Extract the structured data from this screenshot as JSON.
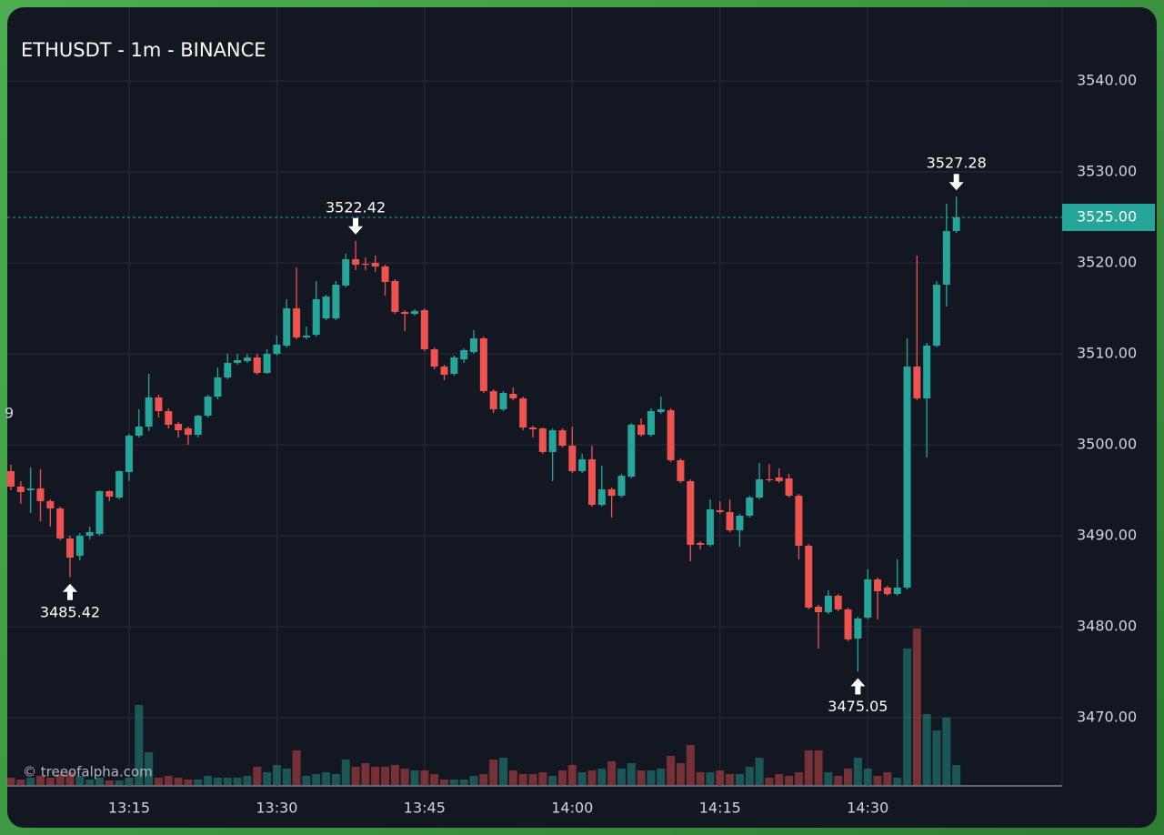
{
  "chart_data": {
    "type": "candlestick",
    "title": "ETHUSDT - 1m - BINANCE",
    "watermark": "© treeofalpha.com",
    "edge_label": "9",
    "up_color": "#26a69a",
    "down_color": "#ef5350",
    "grid": true,
    "categories": [
      null,
      null,
      null,
      null,
      null,
      null,
      null,
      null,
      null,
      null,
      null,
      null,
      "13:15",
      null,
      null,
      null,
      null,
      null,
      null,
      null,
      null,
      null,
      null,
      null,
      null,
      null,
      null,
      "13:30",
      null,
      null,
      null,
      null,
      null,
      null,
      null,
      null,
      null,
      null,
      null,
      null,
      null,
      null,
      "13:45",
      null,
      null,
      null,
      null,
      null,
      null,
      null,
      null,
      null,
      null,
      null,
      null,
      null,
      null,
      "14:00",
      null,
      null,
      null,
      null,
      null,
      null,
      null,
      null,
      null,
      null,
      null,
      null,
      null,
      null,
      "14:15",
      null,
      null,
      null,
      null,
      null,
      null,
      null,
      null,
      null,
      null,
      null,
      null,
      null,
      null,
      "14:30",
      null,
      null,
      null,
      null,
      null,
      null,
      null,
      null,
      null
    ],
    "open": [
      3497.1,
      3495.4,
      3495,
      3495.2,
      3493.8,
      3493,
      3489.7,
      3487.8,
      3490,
      3490.2,
      3494.9,
      3494.2,
      3497,
      3501,
      3502,
      3505.2,
      3503.7,
      3502.3,
      3501.8,
      3501.1,
      3503.2,
      3505.3,
      3507.4,
      3509,
      3509.2,
      3509.6,
      3507.9,
      3510,
      3510.9,
      3515,
      3511.8,
      3512.1,
      3513.9,
      3513.9,
      3517.5,
      3520.4,
      3519.9,
      3520,
      3519.6,
      3518,
      3514.6,
      3514.4,
      3514.8,
      3510.5,
      3508.6,
      3507.8,
      3509.4,
      3510.2,
      3511.7,
      3505.9,
      3503.9,
      3505.6,
      3505.1,
      3501.9,
      3501.8,
      3499.2,
      3501.6,
      3499.9,
      3497.1,
      3498.4,
      3493.4,
      3495.1,
      3494.4,
      3496.5,
      3502.2,
      3501.1,
      3503.6,
      3503.8,
      3498.3,
      3496,
      3489.2,
      3489,
      3492.8,
      3492.6,
      3490.6,
      3492.2,
      3494.2,
      3496.2,
      3496.4,
      3496.3,
      3494.4,
      3488.9,
      3482.2,
      3481.6,
      3483.4,
      3481.9,
      3478.7,
      3481,
      3485.2,
      3484.3,
      3483.6,
      3484.3,
      3508.6,
      3505.1,
      3510.9,
      3517.6,
      3523.5
    ],
    "high": [
      3497.8,
      3496,
      3497.5,
      3497.3,
      3494,
      3493.2,
      3490,
      3490.3,
      3491,
      3495,
      3495,
      3497.2,
      3501.2,
      3503.9,
      3507.8,
      3505.5,
      3504,
      3502.5,
      3502,
      3503.3,
      3505.5,
      3508.5,
      3510,
      3510,
      3510,
      3510,
      3510.5,
      3512,
      3516,
      3519.5,
      3513,
      3518,
      3516.5,
      3518,
      3521,
      3522.42,
      3520.6,
      3520.8,
      3519.8,
      3518.2,
      3514.8,
      3514.9,
      3515,
      3510.7,
      3508.8,
      3509.8,
      3510.6,
      3512.6,
      3511.9,
      3506.1,
      3505.9,
      3506.3,
      3505.3,
      3502.1,
      3501.9,
      3501.8,
      3501.8,
      3502,
      3499,
      3499.9,
      3497.7,
      3495.3,
      3496.8,
      3502.4,
      3502.9,
      3504,
      3505.3,
      3504,
      3498.5,
      3496.2,
      3489.4,
      3494,
      3493.8,
      3494,
      3492.4,
      3494.4,
      3498,
      3497.9,
      3497.4,
      3496.8,
      3494.6,
      3489.1,
      3482.4,
      3484,
      3483.6,
      3482.1,
      3481.1,
      3486.3,
      3485.4,
      3484.5,
      3487.4,
      3511.7,
      3520.8,
      3511.2,
      3518,
      3526.5,
      3527.28
    ],
    "low": [
      3495,
      3493.5,
      3492.5,
      3491.6,
      3491,
      3489.5,
      3485.42,
      3487.3,
      3489.6,
      3490,
      3493.8,
      3494,
      3496,
      3500.8,
      3501.5,
      3503,
      3501.8,
      3500.8,
      3500,
      3500.8,
      3503,
      3505,
      3507.2,
      3508.8,
      3509,
      3507.7,
      3507.8,
      3509.8,
      3510.7,
      3511.6,
      3511.6,
      3511.9,
      3513.7,
      3513.7,
      3517.3,
      3519.2,
      3519.2,
      3519,
      3516.4,
      3514.4,
      3512.5,
      3514.2,
      3510.3,
      3508.3,
      3507.1,
      3507.6,
      3509,
      3510,
      3505.7,
      3503.5,
      3503.7,
      3504.9,
      3501.6,
      3500.8,
      3499,
      3496,
      3499.7,
      3496.9,
      3496.9,
      3493.2,
      3493.2,
      3492,
      3494.2,
      3496.3,
      3500.9,
      3500.9,
      3503.4,
      3498.1,
      3495.8,
      3487.2,
      3488.5,
      3488.8,
      3492.4,
      3490.4,
      3488.8,
      3492,
      3494,
      3495.9,
      3495.8,
      3494.2,
      3487.4,
      3481.9,
      3477.6,
      3481.4,
      3481.7,
      3478.4,
      3475.05,
      3480.8,
      3480.8,
      3483.4,
      3483.4,
      3484.1,
      3504.9,
      3498.6,
      3510.7,
      3515.2,
      3523.3
    ],
    "close": [
      3495.4,
      3494.8,
      3495.2,
      3493.8,
      3493,
      3489.7,
      3487.6,
      3490,
      3490.4,
      3494.9,
      3494.3,
      3497.1,
      3501,
      3502,
      3505.2,
      3503.7,
      3502.2,
      3501.6,
      3501.1,
      3503.2,
      3505.3,
      3507.4,
      3509,
      3509.3,
      3509.6,
      3507.9,
      3510,
      3511,
      3515,
      3511.8,
      3512,
      3516,
      3516.3,
      3517.6,
      3520.4,
      3519.8,
      3519.8,
      3519.6,
      3517.9,
      3514.6,
      3514.4,
      3514.7,
      3510.5,
      3508.6,
      3507.7,
      3509.6,
      3510.4,
      3511.7,
      3505.9,
      3503.9,
      3505.7,
      3505.1,
      3501.9,
      3501.7,
      3499.2,
      3501.6,
      3499.9,
      3497.1,
      3498.4,
      3493.4,
      3495.1,
      3494.4,
      3496.6,
      3502.2,
      3501.1,
      3503.7,
      3503.9,
      3498.3,
      3496,
      3489,
      3489,
      3492.9,
      3492.6,
      3490.6,
      3492.2,
      3494.2,
      3496.2,
      3496.1,
      3496,
      3494.4,
      3488.9,
      3482.1,
      3481.6,
      3483.4,
      3481.9,
      3478.6,
      3480.9,
      3485.2,
      3483.9,
      3483.6,
      3484.3,
      3508.6,
      3505.1,
      3510.9,
      3517.6,
      3523.5,
      3525
    ],
    "volume": [
      8,
      6,
      8,
      10,
      8,
      12,
      14,
      10,
      6,
      8,
      5,
      5,
      8,
      88,
      36,
      8,
      10,
      8,
      6,
      6,
      10,
      8,
      8,
      8,
      10,
      20,
      14,
      22,
      18,
      38,
      10,
      12,
      14,
      12,
      28,
      20,
      24,
      20,
      20,
      22,
      18,
      16,
      16,
      12,
      6,
      6,
      6,
      10,
      12,
      28,
      30,
      16,
      12,
      12,
      14,
      10,
      16,
      22,
      14,
      16,
      18,
      26,
      18,
      24,
      16,
      16,
      18,
      32,
      24,
      44,
      14,
      14,
      16,
      12,
      12,
      20,
      30,
      8,
      12,
      10,
      14,
      38,
      38,
      14,
      10,
      18,
      30,
      18,
      10,
      14,
      8,
      150,
      172,
      78,
      60,
      74,
      22
    ],
    "ylim": [
      3462.5,
      3548.1
    ],
    "yticks": [
      {
        "value": 3470,
        "label": "3470.00"
      },
      {
        "value": 3480,
        "label": "3480.00"
      },
      {
        "value": 3490,
        "label": "3490.00"
      },
      {
        "value": 3500,
        "label": "3500.00"
      },
      {
        "value": 3510,
        "label": "3510.00"
      },
      {
        "value": 3520,
        "label": "3520.00"
      },
      {
        "value": 3530,
        "label": "3530.00"
      },
      {
        "value": 3540,
        "label": "3540.00"
      }
    ],
    "last_price": {
      "value": 3525,
      "label": "3525.00"
    },
    "annotations_high": [
      3522.42,
      3527.28
    ],
    "annotations_low": [
      3485.42,
      3475.05
    ]
  }
}
